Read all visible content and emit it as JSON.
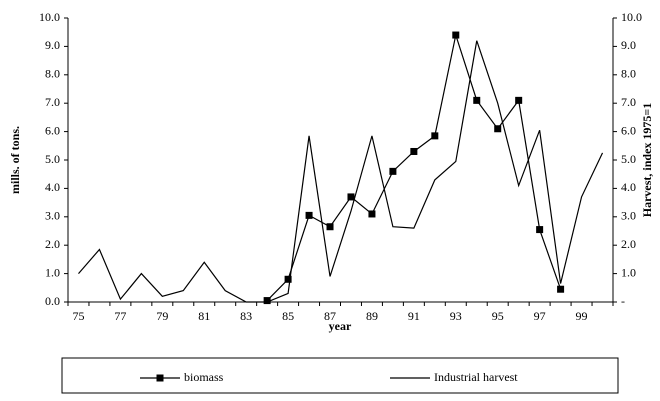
{
  "chart_data": {
    "type": "line",
    "x_label": "year",
    "y_label": "mills. of tons.",
    "y2_label": "Harvest, index 1975=1",
    "categories": [
      "75",
      null,
      "77",
      null,
      "79",
      null,
      "81",
      null,
      "83",
      null,
      "85",
      null,
      "87",
      null,
      "89",
      null,
      "91",
      null,
      "93",
      null,
      "95",
      null,
      "97",
      null,
      "99",
      null
    ],
    "series": [
      {
        "name": "biomass",
        "color": "#000000",
        "marker": "square",
        "values": [
          null,
          null,
          null,
          null,
          null,
          null,
          null,
          null,
          null,
          0.05,
          0.8,
          3.05,
          2.65,
          3.7,
          3.1,
          4.6,
          5.3,
          5.85,
          9.4,
          7.1,
          6.1,
          7.1,
          2.55,
          0.45,
          null,
          null
        ]
      },
      {
        "name": "Industrial harvest",
        "color": "#000000",
        "axis": "y2",
        "values": [
          1.0,
          1.85,
          0.1,
          1.0,
          0.2,
          0.4,
          1.4,
          0.4,
          0.0,
          0.0,
          0.3,
          5.85,
          0.9,
          3.2,
          5.85,
          2.65,
          2.6,
          4.3,
          4.95,
          9.2,
          7.0,
          4.1,
          6.05,
          0.65,
          3.7,
          5.25
        ]
      }
    ],
    "ylim": [
      0,
      10
    ],
    "yticks": [
      {
        "value": 0,
        "label": "0.0"
      },
      {
        "value": 1,
        "label": "1.0"
      },
      {
        "value": 2,
        "label": "2.0"
      },
      {
        "value": 3,
        "label": "3.0"
      },
      {
        "value": 4,
        "label": "4.0"
      },
      {
        "value": 5,
        "label": "5.0"
      },
      {
        "value": 6,
        "label": "6.0"
      },
      {
        "value": 7,
        "label": "7.0"
      },
      {
        "value": 8,
        "label": "8.0"
      },
      {
        "value": 9,
        "label": "9.0"
      },
      {
        "value": 10,
        "label": "10.0"
      }
    ],
    "y2lim": [
      0,
      10
    ],
    "y2ticks": [
      {
        "value": 0,
        "label": "-"
      },
      {
        "value": 1,
        "label": "1.0"
      },
      {
        "value": 2,
        "label": "2.0"
      },
      {
        "value": 3,
        "label": "3.0"
      },
      {
        "value": 4,
        "label": "4.0"
      },
      {
        "value": 5,
        "label": "5.0"
      },
      {
        "value": 6,
        "label": "6.0"
      },
      {
        "value": 7,
        "label": "7.0"
      },
      {
        "value": 8,
        "label": "8.0"
      },
      {
        "value": 9,
        "label": "9.0"
      },
      {
        "value": 10,
        "label": "10.0"
      }
    ],
    "grid": false,
    "legend": "bottom"
  }
}
